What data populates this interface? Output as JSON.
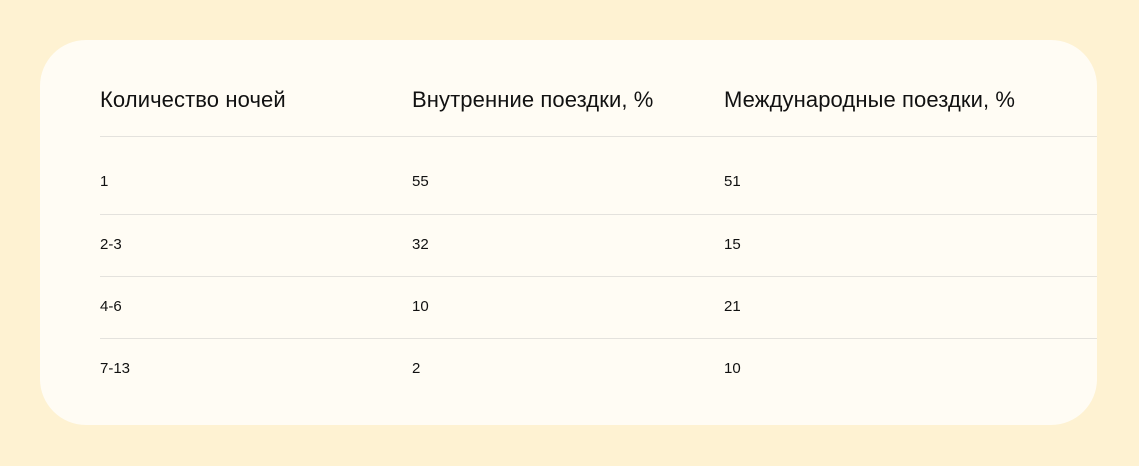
{
  "table": {
    "headers": [
      "Количество ночей",
      "Внутренние поездки, %",
      "Международные поездки, %"
    ],
    "rows": [
      [
        "1",
        "55",
        "51"
      ],
      [
        "2-3",
        "32",
        "15"
      ],
      [
        "4-6",
        "10",
        "21"
      ],
      [
        "7-13",
        "2",
        "10"
      ]
    ]
  },
  "colors": {
    "background": "#fef2d2",
    "card": "#fffcf4",
    "divider": "#e4e2dd",
    "text": "#111111"
  }
}
